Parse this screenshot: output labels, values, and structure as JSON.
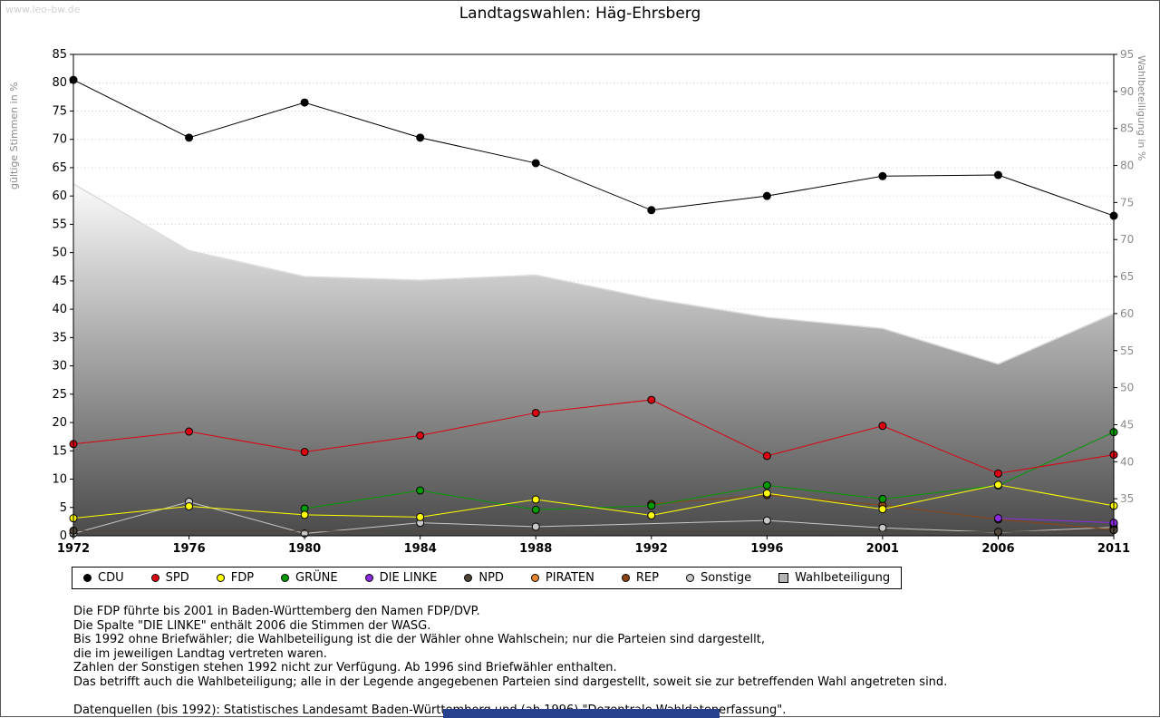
{
  "page": {
    "watermark": "www.leo-bw.de",
    "title": "Landtagswahlen: Häg-Ehrsberg",
    "footer_bar_color": "#27408b"
  },
  "chart_data": {
    "type": "line",
    "title": "Landtagswahlen: Häg-Ehrsberg",
    "categories": [
      "1972",
      "1976",
      "1980",
      "1984",
      "1988",
      "1992",
      "1996",
      "2001",
      "2006",
      "2011"
    ],
    "left_axis": {
      "label": "gültige Stimmen in %",
      "min": 0,
      "max": 85,
      "tick_step": 5
    },
    "right_axis": {
      "label": "Wahlbeteiligung in %",
      "min": 30,
      "max": 95,
      "tick_step": 5,
      "label_min": 35
    },
    "grid": "horizontal-dotted",
    "legend_position": "bottom",
    "area_gradient": [
      "#fafafa",
      "#4a4a4a"
    ],
    "area_edge_color": "#dcdcdc",
    "series": [
      {
        "name": "CDU",
        "color": "#000000",
        "values": [
          80.5,
          70.3,
          76.5,
          70.3,
          65.8,
          57.5,
          60.0,
          63.5,
          63.7,
          56.5
        ]
      },
      {
        "name": "SPD",
        "color": "#dd0010",
        "values": [
          16.2,
          18.4,
          14.8,
          17.7,
          21.7,
          24.0,
          14.1,
          19.4,
          11.0,
          14.3
        ]
      },
      {
        "name": "FDP",
        "color": "#ffff00",
        "values": [
          3.1,
          5.2,
          3.7,
          3.3,
          6.4,
          3.6,
          7.5,
          4.7,
          9.0,
          5.3
        ]
      },
      {
        "name": "GRÜNE",
        "color": "#009a00",
        "values": [
          null,
          null,
          4.8,
          8.0,
          4.6,
          5.3,
          8.9,
          6.5,
          8.9,
          18.3
        ]
      },
      {
        "name": "DIE LINKE",
        "color": "#8a2be2",
        "values": [
          null,
          null,
          null,
          null,
          null,
          null,
          null,
          null,
          3.1,
          2.3
        ]
      },
      {
        "name": "NPD",
        "color": "#4f4538",
        "values": [
          0.9,
          null,
          null,
          null,
          null,
          null,
          null,
          null,
          0.7,
          1.0
        ]
      },
      {
        "name": "PIRATEN",
        "color": "#e8862d",
        "values": [
          null,
          null,
          null,
          null,
          null,
          null,
          null,
          null,
          null,
          2.1
        ]
      },
      {
        "name": "REP",
        "color": "#8b4513",
        "values": [
          null,
          null,
          null,
          null,
          null,
          5.6,
          7.2,
          5.4,
          2.9,
          1.1
        ]
      },
      {
        "name": "Sonstige",
        "color": "#c8c8c8",
        "values": [
          0.4,
          6.0,
          0.4,
          2.3,
          1.6,
          null,
          2.7,
          1.4,
          0.6,
          1.5
        ]
      },
      {
        "name": "Wahlbeteiligung",
        "color": "#b4b4b4",
        "type": "area",
        "axis": "right",
        "values": [
          77.5,
          68.5,
          65.0,
          64.5,
          65.2,
          62.0,
          59.5,
          58.0,
          53.2,
          60.0
        ]
      }
    ]
  },
  "footnotes": [
    "Die FDP führte bis 2001 in Baden-Württemberg den Namen FDP/DVP.",
    "Die Spalte \"DIE LINKE\" enthält 2006 die Stimmen der WASG.",
    "Bis 1992 ohne Briefwähler; die Wahlbeteiligung ist die der Wähler ohne Wahlschein; nur die Parteien sind dargestellt,",
    "die im jeweiligen Landtag vertreten waren.",
    "Zahlen der Sonstigen stehen 1992 nicht zur Verfügung. Ab 1996 sind Briefwähler enthalten.",
    "Das betrifft auch die Wahlbeteiligung; alle in der Legende angegebenen Parteien sind dargestellt, soweit sie zur betreffenden Wahl angetreten sind.",
    "",
    "Datenquellen (bis 1992): Statistisches Landesamt Baden-Württemberg und (ab 1996) \"Dezentrale Wahldatenerfassung\"."
  ]
}
